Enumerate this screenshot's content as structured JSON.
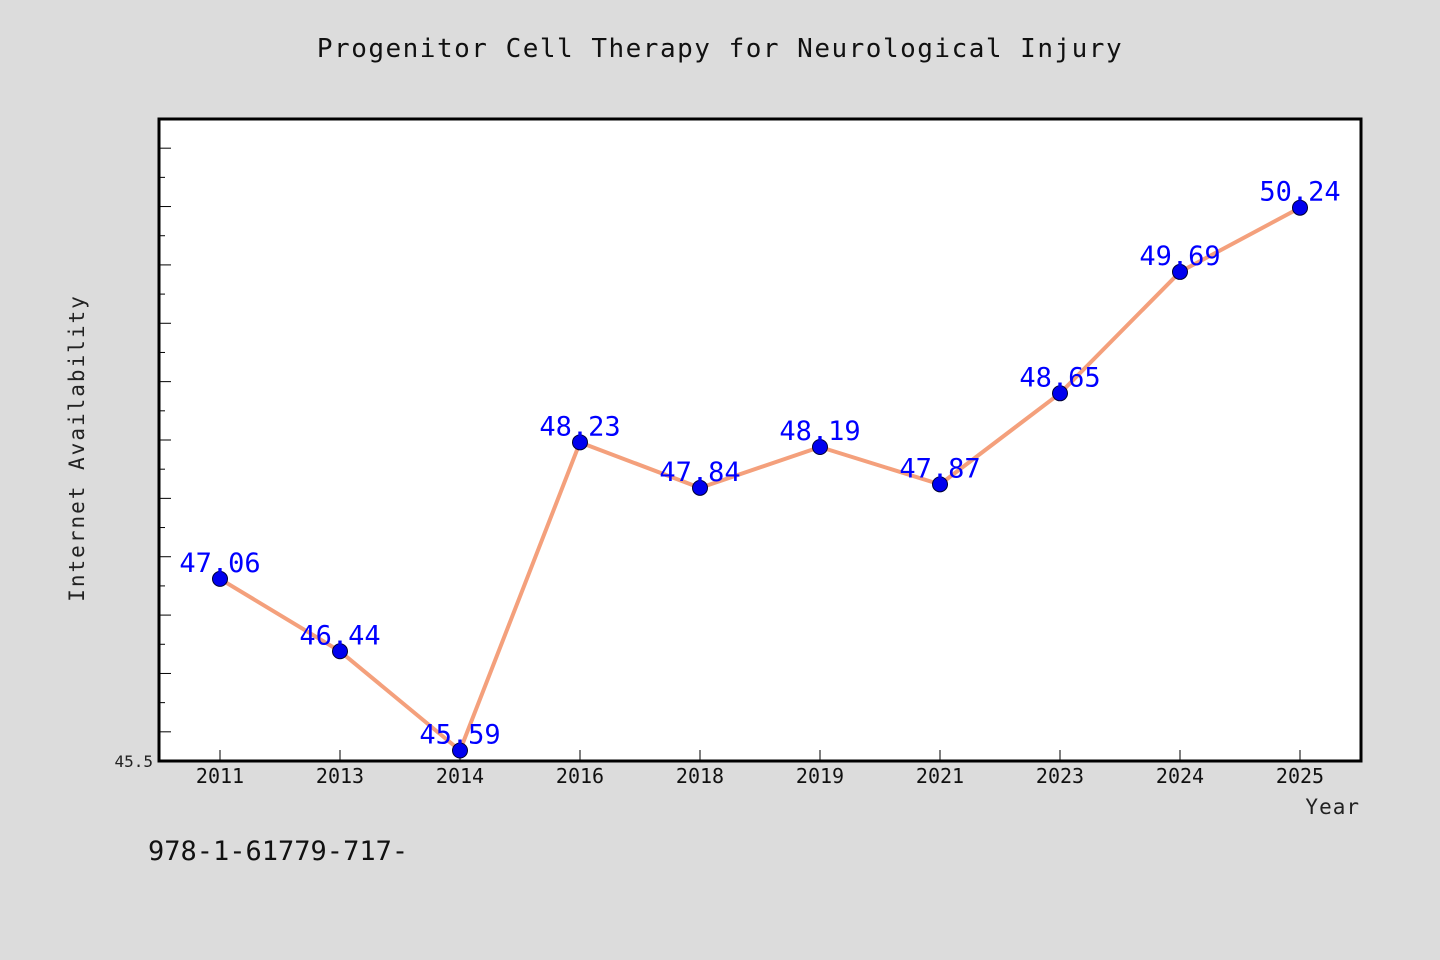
{
  "chart_data": {
    "type": "line",
    "title": "Progenitor Cell Therapy for Neurological Injury",
    "xlabel": "Year",
    "ylabel": "Internet Availability",
    "categories": [
      "2011",
      "2013",
      "2014",
      "2016",
      "2018",
      "2019",
      "2021",
      "2023",
      "2024",
      "2025"
    ],
    "series": [
      {
        "values": [
          47.06,
          46.44,
          45.59,
          48.23,
          47.84,
          48.19,
          47.87,
          48.65,
          49.69,
          50.24
        ],
        "data_labels": [
          "47.06",
          "46.44",
          "45.59",
          "48.23",
          "47.84",
          "48.19",
          "47.87",
          "48.65",
          "49.69",
          "50.24"
        ]
      }
    ],
    "ylim": [
      45.5,
      51.0
    ],
    "ytick_labels": [
      "45.5"
    ],
    "grid": false,
    "legend": "none",
    "colors": {
      "line": "#f4a07c",
      "marker": "#0000ee",
      "data_label": "#0000ff",
      "plot_background": "#ffffff",
      "figure_background": "#dcdcdc"
    }
  },
  "footer_text": "978-1-61779-717-"
}
